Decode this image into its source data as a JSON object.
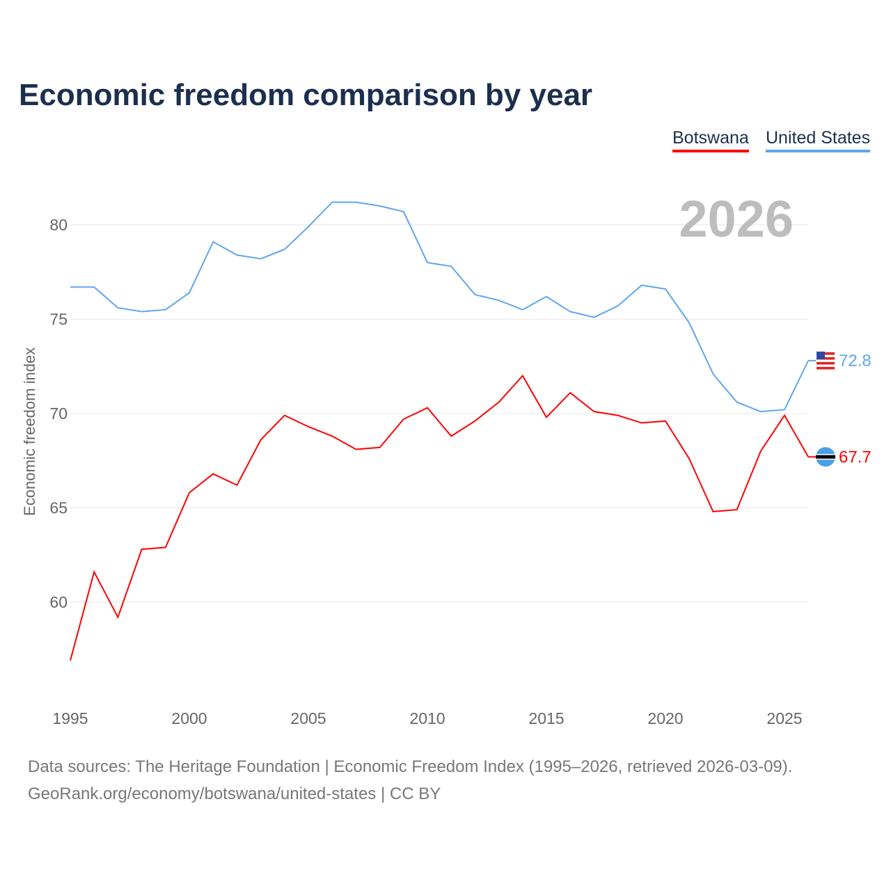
{
  "title": "Economic freedom comparison by year",
  "year_watermark": "2026",
  "source_line1": "Data sources: The Heritage Foundation | Economic Freedom Index (1995–2026, retrieved 2026-03-09).",
  "source_line2": "GeoRank.org/economy/botswana/united-states | CC BY",
  "chart_data": {
    "type": "line",
    "title": "Economic freedom comparison by year",
    "xlabel": "",
    "ylabel": "Economic freedom index",
    "x": [
      1995,
      1996,
      1997,
      1998,
      1999,
      2000,
      2001,
      2002,
      2003,
      2004,
      2005,
      2006,
      2007,
      2008,
      2009,
      2010,
      2011,
      2012,
      2013,
      2014,
      2015,
      2016,
      2017,
      2018,
      2019,
      2020,
      2021,
      2022,
      2023,
      2024,
      2025,
      2026
    ],
    "xticks": [
      "1995",
      "2000",
      "2005",
      "2010",
      "2015",
      "2020",
      "2025"
    ],
    "yticks": [
      "60",
      "65",
      "70",
      "75",
      "80"
    ],
    "ylim": [
      55.5,
      83
    ],
    "grid": true,
    "legend_placement": "top-right",
    "series": [
      {
        "name": "Botswana",
        "color": "#ff0000",
        "end_label": "67.7",
        "flag": "botswana-flag",
        "values": [
          56.9,
          61.6,
          59.2,
          62.8,
          62.9,
          65.8,
          66.8,
          66.2,
          68.6,
          69.9,
          69.3,
          68.8,
          68.1,
          68.2,
          69.7,
          70.3,
          68.8,
          69.6,
          70.6,
          72.0,
          69.8,
          71.1,
          70.1,
          69.9,
          69.5,
          69.6,
          67.6,
          64.8,
          64.9,
          68.0,
          69.9,
          67.7
        ]
      },
      {
        "name": "United States",
        "color": "#5ea6ee",
        "end_label": "72.8",
        "flag": "us-flag",
        "values": [
          76.7,
          76.7,
          75.6,
          75.4,
          75.5,
          76.4,
          79.1,
          78.4,
          78.2,
          78.7,
          79.9,
          81.2,
          81.2,
          81.0,
          80.7,
          78.0,
          77.8,
          76.3,
          76.0,
          75.5,
          76.2,
          75.4,
          75.1,
          75.7,
          76.8,
          76.6,
          74.8,
          72.1,
          70.6,
          70.1,
          70.2,
          72.8
        ]
      }
    ]
  }
}
